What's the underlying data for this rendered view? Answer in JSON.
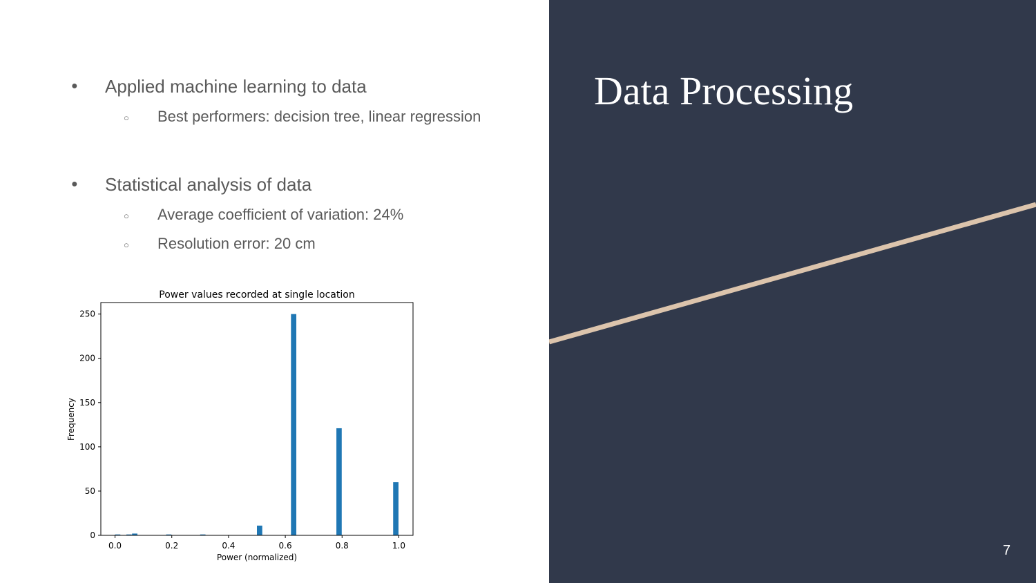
{
  "slide": {
    "title": "Data Processing",
    "page_number": "7",
    "background_color": "#31394b",
    "accent_line_color": "#dcc4ac",
    "bullets": [
      {
        "text": "Applied machine learning to data",
        "sub": [
          "Best performers: decision tree, linear regression"
        ]
      },
      {
        "text": "Statistical analysis of data",
        "sub": [
          "Average coefficient of variation: 24%",
          "Resolution error: 20 cm"
        ]
      }
    ],
    "bullet_icon": "filled-circle",
    "sub_bullet_icon": "hollow-circle"
  },
  "chart_data": {
    "type": "bar",
    "title": "Power values recorded at single location",
    "xlabel": "Power (normalized)",
    "ylabel": "Frequency",
    "xlim": [
      -0.05,
      1.05
    ],
    "ylim": [
      0,
      263
    ],
    "xticks": [
      "0.0",
      "0.2",
      "0.4",
      "0.6",
      "0.8",
      "1.0"
    ],
    "yticks": [
      "0",
      "50",
      "100",
      "150",
      "200",
      "250"
    ],
    "grid": false,
    "bar_color": "#1f77b4",
    "bin_width": 0.02,
    "bins": [
      {
        "x": 0.01,
        "count": 1
      },
      {
        "x": 0.05,
        "count": 1
      },
      {
        "x": 0.07,
        "count": 2
      },
      {
        "x": 0.19,
        "count": 1
      },
      {
        "x": 0.31,
        "count": 1
      },
      {
        "x": 0.51,
        "count": 11
      },
      {
        "x": 0.63,
        "count": 250
      },
      {
        "x": 0.79,
        "count": 121
      },
      {
        "x": 0.99,
        "count": 60
      }
    ]
  }
}
